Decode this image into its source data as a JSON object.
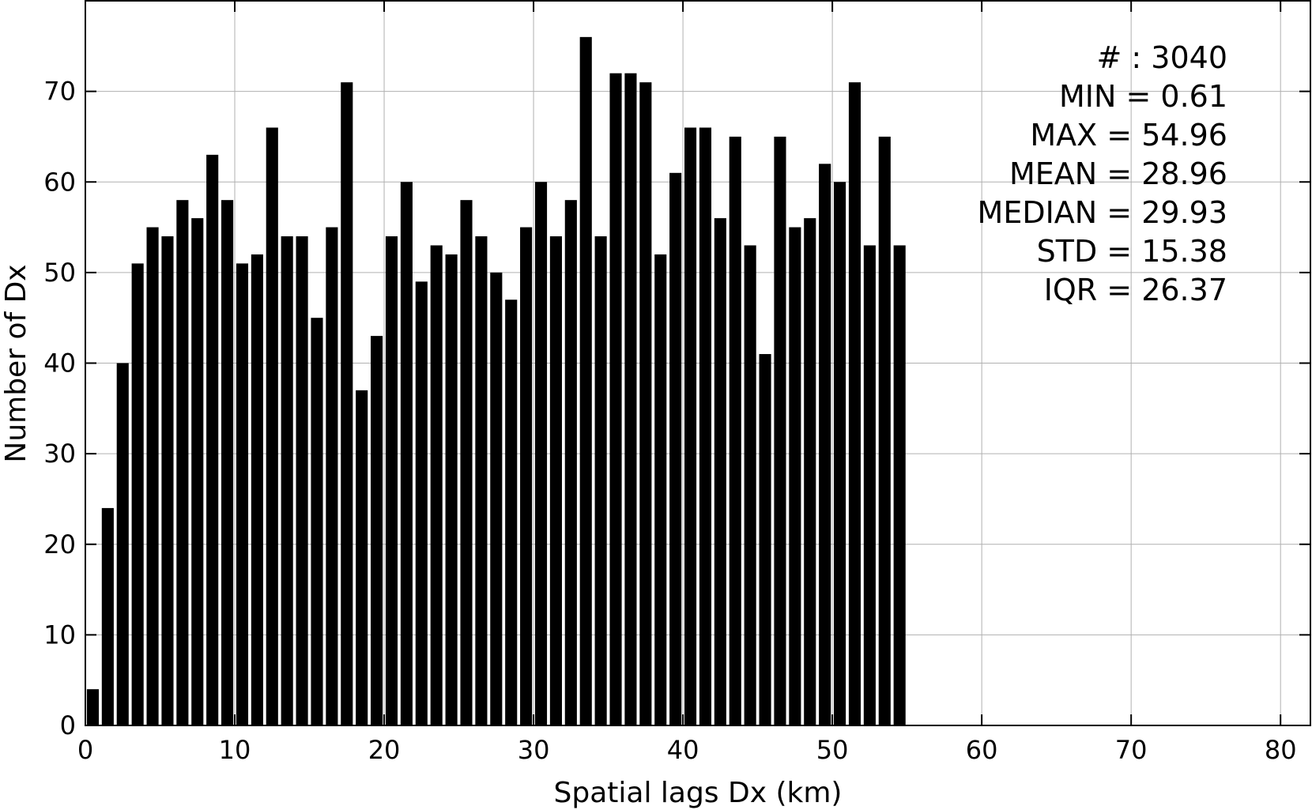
{
  "chart_data": {
    "type": "bar",
    "title": "",
    "xlabel": "Spatial lags Dx (km)",
    "ylabel": "Number of Dx",
    "xlim": [
      0,
      82
    ],
    "ylim": [
      0,
      80
    ],
    "xticks": [
      0,
      10,
      20,
      30,
      40,
      50,
      60,
      70,
      80
    ],
    "yticks": [
      0,
      10,
      20,
      30,
      40,
      50,
      60,
      70
    ],
    "grid": true,
    "bar_color": "#000000",
    "bin_width": 1,
    "x": [
      0.5,
      1.5,
      2.5,
      3.5,
      4.5,
      5.5,
      6.5,
      7.5,
      8.5,
      9.5,
      10.5,
      11.5,
      12.5,
      13.5,
      14.5,
      15.5,
      16.5,
      17.5,
      18.5,
      19.5,
      20.5,
      21.5,
      22.5,
      23.5,
      24.5,
      25.5,
      26.5,
      27.5,
      28.5,
      29.5,
      30.5,
      31.5,
      32.5,
      33.5,
      34.5,
      35.5,
      36.5,
      37.5,
      38.5,
      39.5,
      40.5,
      41.5,
      42.5,
      43.5,
      44.5,
      45.5,
      46.5,
      47.5,
      48.5,
      49.5,
      50.5,
      51.5,
      52.5,
      53.5,
      54.5
    ],
    "values": [
      4,
      24,
      40,
      51,
      55,
      54,
      58,
      56,
      63,
      58,
      51,
      52,
      66,
      54,
      54,
      45,
      55,
      71,
      37,
      43,
      54,
      60,
      49,
      53,
      52,
      58,
      54,
      50,
      47,
      55,
      60,
      54,
      58,
      76,
      54,
      72,
      72,
      71,
      52,
      61,
      66,
      66,
      56,
      65,
      53,
      41,
      65,
      55,
      56,
      62,
      60,
      71,
      53,
      65,
      53
    ],
    "stats": {
      "count": "# : 3040",
      "min": "MIN = 0.61",
      "max": "MAX =  54.96",
      "mean": "MEAN = 28.96",
      "median": "MEDIAN = 29.93",
      "std": "STD = 15.38",
      "iqr": "IQR = 26.37"
    },
    "stats_placement": "top-right"
  }
}
